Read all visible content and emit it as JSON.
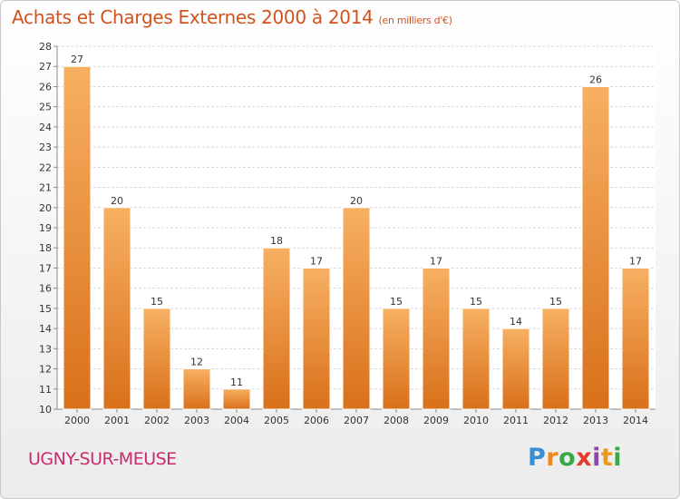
{
  "title": "Achats et Charges Externes 2000 à 2014",
  "unit": "(en milliers d'€)",
  "commune": "UGNY-SUR-MEUSE",
  "logo": {
    "letters": [
      "P",
      "r",
      "o",
      "x",
      "i",
      "t",
      "i"
    ],
    "colors": [
      "#3a8fd4",
      "#f08a1c",
      "#3aa84a",
      "#e13c2e",
      "#8f44ad",
      "#e89b1c",
      "#3aa84a"
    ]
  },
  "colors": {
    "bar": "#f0922e",
    "bar_light": "#f7b062",
    "grid": "#d8d8d8",
    "axis": "#8a8a8a"
  },
  "chart_data": {
    "type": "bar",
    "categories": [
      "2000",
      "2001",
      "2002",
      "2003",
      "2004",
      "2005",
      "2006",
      "2007",
      "2008",
      "2009",
      "2010",
      "2011",
      "2012",
      "2013",
      "2014"
    ],
    "values": [
      27,
      20,
      15,
      12,
      11,
      18,
      17,
      20,
      15,
      17,
      15,
      14,
      15,
      26,
      17
    ],
    "ylim": [
      10,
      28
    ],
    "yticks": [
      10,
      11,
      12,
      13,
      14,
      15,
      16,
      17,
      18,
      19,
      20,
      21,
      22,
      23,
      24,
      25,
      26,
      27,
      28
    ],
    "grid": true,
    "data_labels": true
  }
}
